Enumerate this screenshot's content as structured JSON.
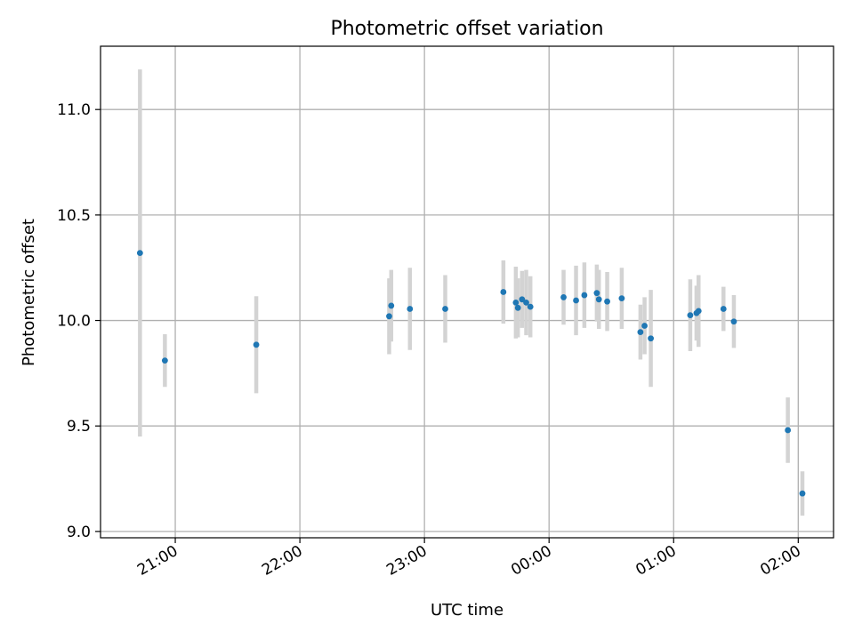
{
  "chart_data": {
    "type": "scatter",
    "title": "Photometric offset variation",
    "xlabel": "UTC time",
    "ylabel": "Photometric offset",
    "ylim": [
      8.97,
      11.3
    ],
    "xlim": [
      "20:24",
      "02:17"
    ],
    "yticks": [
      9.0,
      9.5,
      10.0,
      10.5,
      11.0
    ],
    "ytick_labels": [
      "9.0",
      "9.5",
      "10.0",
      "10.5",
      "11.0"
    ],
    "xticks": [
      "21:00",
      "22:00",
      "23:00",
      "00:00",
      "01:00",
      "02:00"
    ],
    "grid": true,
    "point_color": "#1f77b4",
    "errorbar_color": "#d3d3d3",
    "points": [
      {
        "time": "20:43",
        "y": 10.32,
        "err": 0.87
      },
      {
        "time": "20:55",
        "y": 9.81,
        "err": 0.125
      },
      {
        "time": "21:39",
        "y": 9.885,
        "err": 0.23
      },
      {
        "time": "22:43",
        "y": 10.02,
        "err": 0.18
      },
      {
        "time": "22:44",
        "y": 10.07,
        "err": 0.17
      },
      {
        "time": "22:53",
        "y": 10.055,
        "err": 0.195
      },
      {
        "time": "23:10",
        "y": 10.055,
        "err": 0.16
      },
      {
        "time": "23:38",
        "y": 10.135,
        "err": 0.15
      },
      {
        "time": "23:44",
        "y": 10.085,
        "err": 0.17
      },
      {
        "time": "23:45",
        "y": 10.06,
        "err": 0.14
      },
      {
        "time": "23:47",
        "y": 10.1,
        "err": 0.135
      },
      {
        "time": "23:49",
        "y": 10.085,
        "err": 0.155
      },
      {
        "time": "23:51",
        "y": 10.065,
        "err": 0.145
      },
      {
        "time": "00:07",
        "y": 10.11,
        "err": 0.13
      },
      {
        "time": "00:13",
        "y": 10.095,
        "err": 0.165
      },
      {
        "time": "00:17",
        "y": 10.12,
        "err": 0.155
      },
      {
        "time": "00:23",
        "y": 10.13,
        "err": 0.135
      },
      {
        "time": "00:24",
        "y": 10.1,
        "err": 0.14
      },
      {
        "time": "00:28",
        "y": 10.09,
        "err": 0.14
      },
      {
        "time": "00:35",
        "y": 10.105,
        "err": 0.145
      },
      {
        "time": "00:44",
        "y": 9.945,
        "err": 0.13
      },
      {
        "time": "00:46",
        "y": 9.975,
        "err": 0.135
      },
      {
        "time": "00:49",
        "y": 9.915,
        "err": 0.23
      },
      {
        "time": "01:08",
        "y": 10.025,
        "err": 0.17
      },
      {
        "time": "01:11",
        "y": 10.035,
        "err": 0.13
      },
      {
        "time": "01:12",
        "y": 10.045,
        "err": 0.17
      },
      {
        "time": "01:24",
        "y": 10.055,
        "err": 0.105
      },
      {
        "time": "01:29",
        "y": 9.995,
        "err": 0.125
      },
      {
        "time": "01:55",
        "y": 9.48,
        "err": 0.155
      },
      {
        "time": "02:02",
        "y": 9.18,
        "err": 0.105
      }
    ]
  }
}
